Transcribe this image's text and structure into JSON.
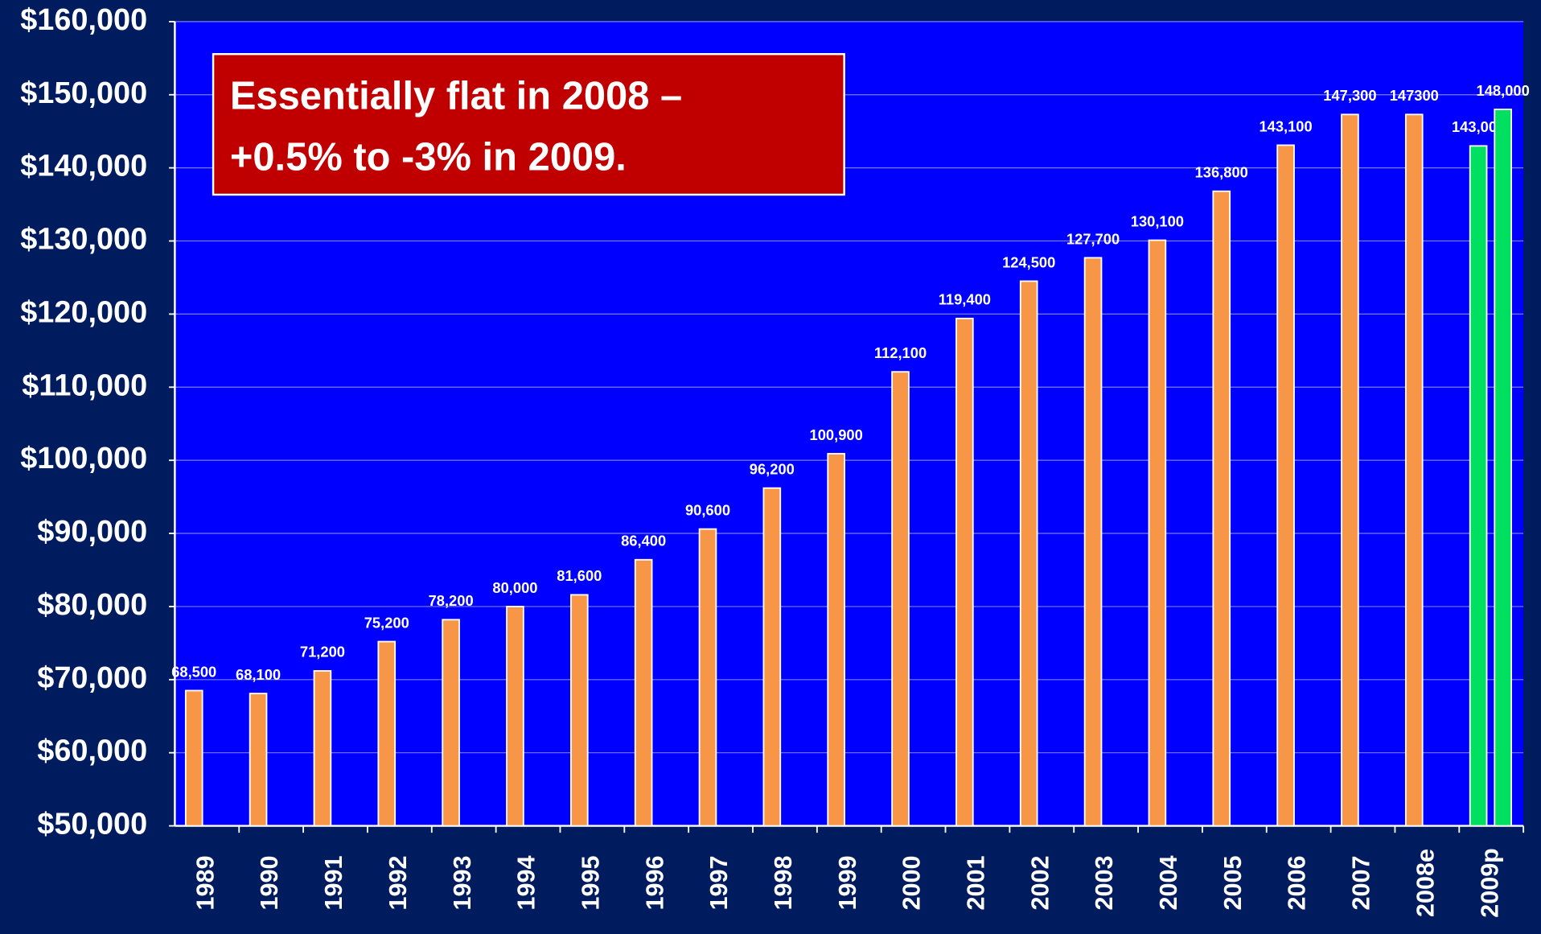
{
  "chart_data": {
    "type": "bar",
    "categories": [
      "1989",
      "1990",
      "1991",
      "1992",
      "1993",
      "1994",
      "1995",
      "1996",
      "1997",
      "1998",
      "1999",
      "2000",
      "2001",
      "2002",
      "2003",
      "2004",
      "2005",
      "2006",
      "2007",
      "2008e",
      "2009p"
    ],
    "series": [
      {
        "color": "#f79646",
        "values": [
          68500,
          68100,
          71200,
          75200,
          78200,
          80000,
          81600,
          86400,
          90600,
          96200,
          100900,
          112100,
          119400,
          124500,
          127700,
          130100,
          136800,
          143100,
          147300,
          147300,
          null
        ],
        "value_labels": [
          "68,500",
          "68,100",
          "71,200",
          "75,200",
          "78,200",
          "80,000",
          "81,600",
          "86,400",
          "90,600",
          "96,200",
          "100,900",
          "112,100",
          "119,400",
          "124,500",
          "127,700",
          "130,100",
          "136,800",
          "143,100",
          "147,300",
          "147300",
          null
        ]
      },
      {
        "color": "#00e060",
        "values": [
          null,
          null,
          null,
          null,
          null,
          null,
          null,
          null,
          null,
          null,
          null,
          null,
          null,
          null,
          null,
          null,
          null,
          null,
          null,
          null,
          143000
        ],
        "value_labels": [
          null,
          null,
          null,
          null,
          null,
          null,
          null,
          null,
          null,
          null,
          null,
          null,
          null,
          null,
          null,
          null,
          null,
          null,
          null,
          null,
          "143,000"
        ]
      },
      {
        "color": "#00e060",
        "values": [
          null,
          null,
          null,
          null,
          null,
          null,
          null,
          null,
          null,
          null,
          null,
          null,
          null,
          null,
          null,
          null,
          null,
          null,
          null,
          null,
          148000
        ],
        "value_labels": [
          null,
          null,
          null,
          null,
          null,
          null,
          null,
          null,
          null,
          null,
          null,
          null,
          null,
          null,
          null,
          null,
          null,
          null,
          null,
          null,
          "148,000"
        ]
      }
    ],
    "ylim": [
      50000,
      160000
    ],
    "yticks": [
      {
        "value": 50000,
        "label": "$50,000"
      },
      {
        "value": 60000,
        "label": "$60,000"
      },
      {
        "value": 70000,
        "label": "$70,000"
      },
      {
        "value": 80000,
        "label": "$80,000"
      },
      {
        "value": 90000,
        "label": "$90,000"
      },
      {
        "value": 100000,
        "label": "$100,000"
      },
      {
        "value": 110000,
        "label": "$110,000"
      },
      {
        "value": 120000,
        "label": "$120,000"
      },
      {
        "value": 130000,
        "label": "$130,000"
      },
      {
        "value": 140000,
        "label": "$140,000"
      },
      {
        "value": 150000,
        "label": "$150,000"
      },
      {
        "value": 160000,
        "label": "$160,000"
      }
    ],
    "grid": true,
    "annotation": [
      "Essentially flat in 2008 –",
      "+0.5%  to -3% in 2009."
    ]
  }
}
